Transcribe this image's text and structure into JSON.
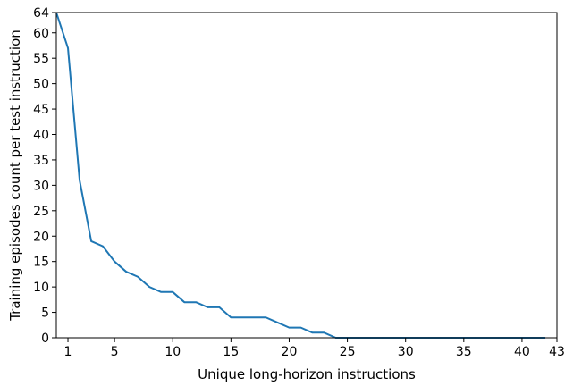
{
  "chart_data": {
    "type": "line",
    "title": "",
    "xlabel": "Unique long-horizon instructions",
    "ylabel": "Training episodes count per test instruction",
    "xlim": [
      0,
      43
    ],
    "ylim": [
      0,
      64
    ],
    "xticks": [
      1,
      5,
      10,
      15,
      20,
      25,
      30,
      35,
      40,
      43
    ],
    "yticks": [
      0,
      5,
      10,
      15,
      20,
      25,
      30,
      35,
      40,
      45,
      50,
      55,
      60,
      64
    ],
    "grid": false,
    "legend": "none",
    "series": [
      {
        "color": "#1f77b4",
        "x": [
          0,
          1,
          2,
          3,
          4,
          5,
          6,
          7,
          8,
          9,
          10,
          11,
          12,
          13,
          14,
          15,
          16,
          17,
          18,
          19,
          20,
          21,
          22,
          23,
          24,
          25,
          26,
          27,
          28,
          29,
          30,
          31,
          32,
          33,
          34,
          35,
          36,
          37,
          38,
          39,
          40,
          41,
          42
        ],
        "y": [
          64,
          57,
          31,
          19,
          18,
          15,
          13,
          12,
          10,
          9,
          9,
          7,
          7,
          6,
          6,
          4,
          4,
          4,
          4,
          3,
          2,
          2,
          1,
          1,
          0,
          0,
          0,
          0,
          0,
          0,
          0,
          0,
          0,
          0,
          0,
          0,
          0,
          0,
          0,
          0,
          0,
          0,
          0
        ]
      }
    ]
  }
}
